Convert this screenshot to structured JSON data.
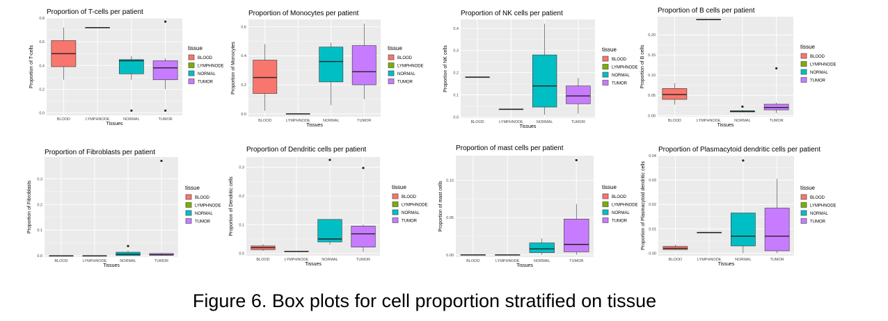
{
  "caption": "Figure 6. Box plots for cell proportion stratified on tissue",
  "colors": {
    "BLOOD": "#F8766D",
    "LYMPHNODE": "#7CAE00",
    "NORMAL": "#00BFC4",
    "TUMOR": "#C77CFF",
    "panel_bg": "#EBEBEB",
    "grid": "#FFFFFF"
  },
  "chart_data": [
    {
      "type": "box",
      "title": "Proportion of T-cells per patient",
      "xlabel": "Tissues",
      "ylabel": "Proportion of T-cells",
      "categories": [
        "BLOOD",
        "LYMPHNODE",
        "NORMAL",
        "TUMOR"
      ],
      "ylim": [
        -0.02,
        0.8
      ],
      "yticks": [
        0.0,
        0.2,
        0.4,
        0.6,
        0.8
      ],
      "ytick_labels": [
        "0.0",
        "0.2",
        "0.4",
        "0.6",
        "0.8"
      ],
      "legend_title": "tissue",
      "legend_entries": [
        "BLOOD",
        "LYMPHNODE",
        "NORMAL",
        "TUMOR"
      ],
      "boxes": [
        {
          "category": "BLOOD",
          "min": 0.28,
          "q1": 0.39,
          "median": 0.5,
          "q3": 0.61,
          "max": 0.72,
          "outliers": []
        },
        {
          "category": "LYMPHNODE",
          "min": 0.72,
          "q1": 0.72,
          "median": 0.72,
          "q3": 0.72,
          "max": 0.72,
          "outliers": []
        },
        {
          "category": "NORMAL",
          "min": 0.28,
          "q1": 0.33,
          "median": 0.44,
          "q3": 0.45,
          "max": 0.48,
          "outliers": [
            0.02
          ]
        },
        {
          "category": "TUMOR",
          "min": 0.2,
          "q1": 0.28,
          "median": 0.38,
          "q3": 0.44,
          "max": 0.46,
          "outliers": [
            0.77,
            0.02
          ]
        }
      ]
    },
    {
      "type": "box",
      "title": "Proportion of Monocytes per patient",
      "xlabel": "Tissues",
      "ylabel": "Proportion of Monocytes",
      "categories": [
        "BLOOD",
        "LYMPHNODE",
        "NORMAL",
        "TUMOR"
      ],
      "ylim": [
        -0.02,
        0.65
      ],
      "yticks": [
        0.0,
        0.2,
        0.4,
        0.6
      ],
      "ytick_labels": [
        "0.0",
        "0.2",
        "0.4",
        "0.6"
      ],
      "legend_title": "tissue",
      "legend_entries": [
        "BLOOD",
        "LYMPHNODE",
        "NORMAL",
        "TUMOR"
      ],
      "boxes": [
        {
          "category": "BLOOD",
          "min": 0.02,
          "q1": 0.14,
          "median": 0.25,
          "q3": 0.37,
          "max": 0.48,
          "outliers": []
        },
        {
          "category": "LYMPHNODE",
          "min": 0.0,
          "q1": 0.0,
          "median": 0.0,
          "q3": 0.0,
          "max": 0.0,
          "outliers": []
        },
        {
          "category": "NORMAL",
          "min": 0.06,
          "q1": 0.22,
          "median": 0.36,
          "q3": 0.46,
          "max": 0.49,
          "outliers": []
        },
        {
          "category": "TUMOR",
          "min": 0.1,
          "q1": 0.2,
          "median": 0.29,
          "q3": 0.47,
          "max": 0.62,
          "outliers": []
        }
      ]
    },
    {
      "type": "box",
      "title": "Proportion of NK cells per patient",
      "xlabel": "Tissues",
      "ylabel": "Proportion of NK cells",
      "categories": [
        "BLOOD",
        "LYMPHNODE",
        "NORMAL",
        "TUMOR"
      ],
      "ylim": [
        -0.005,
        0.44
      ],
      "yticks": [
        0.0,
        0.1,
        0.2,
        0.3,
        0.4
      ],
      "ytick_labels": [
        "0.0",
        "0.1",
        "0.2",
        "0.3",
        "0.4"
      ],
      "legend_title": "tissue",
      "legend_entries": [
        "BLOOD",
        "LYMPHNODE",
        "NORMAL",
        "TUMOR"
      ],
      "boxes": [
        {
          "category": "BLOOD",
          "min": 0.18,
          "q1": 0.18,
          "median": 0.18,
          "q3": 0.18,
          "max": 0.18,
          "outliers": []
        },
        {
          "category": "LYMPHNODE",
          "min": 0.035,
          "q1": 0.035,
          "median": 0.035,
          "q3": 0.035,
          "max": 0.035,
          "outliers": []
        },
        {
          "category": "NORMAL",
          "min": 0.01,
          "q1": 0.045,
          "median": 0.14,
          "q3": 0.28,
          "max": 0.42,
          "outliers": []
        },
        {
          "category": "TUMOR",
          "min": 0.015,
          "q1": 0.06,
          "median": 0.095,
          "q3": 0.14,
          "max": 0.175,
          "outliers": []
        }
      ]
    },
    {
      "type": "box",
      "title": "Proportion of B cells per patient",
      "xlabel": "Tissues",
      "ylabel": "Proportion of B cells",
      "categories": [
        "BLOOD",
        "LYMPHNODE",
        "NORMAL",
        "TUMOR"
      ],
      "ylim": [
        -0.003,
        0.245
      ],
      "yticks": [
        0.0,
        0.05,
        0.1,
        0.15,
        0.2
      ],
      "ytick_labels": [
        "0.00",
        "0.05",
        "0.10",
        "0.15",
        "0.20"
      ],
      "legend_title": "tissue",
      "legend_entries": [
        "BLOOD",
        "LYMPHNODE",
        "NORMAL",
        "TUMOR"
      ],
      "boxes": [
        {
          "category": "BLOOD",
          "min": 0.027,
          "q1": 0.04,
          "median": 0.052,
          "q3": 0.067,
          "max": 0.08,
          "outliers": []
        },
        {
          "category": "LYMPHNODE",
          "min": 0.238,
          "q1": 0.238,
          "median": 0.238,
          "q3": 0.238,
          "max": 0.238,
          "outliers": []
        },
        {
          "category": "NORMAL",
          "min": 0.008,
          "q1": 0.009,
          "median": 0.01,
          "q3": 0.012,
          "max": 0.014,
          "outliers": [
            0.022
          ]
        },
        {
          "category": "TUMOR",
          "min": 0.006,
          "q1": 0.014,
          "median": 0.02,
          "q3": 0.028,
          "max": 0.032,
          "outliers": [
            0.117
          ]
        }
      ]
    },
    {
      "type": "box",
      "title": "Proportion of Fibroblasts per patient",
      "xlabel": "Tissues",
      "ylabel": "Proportion of Fibroblasts",
      "categories": [
        "BLOOD",
        "LYMPHNODE",
        "NORMAL",
        "TUMOR"
      ],
      "ylim": [
        -0.005,
        0.385
      ],
      "yticks": [
        0.0,
        0.1,
        0.2,
        0.3
      ],
      "ytick_labels": [
        "0.0",
        "0.1",
        "0.2",
        "0.3"
      ],
      "legend_title": "tissue",
      "legend_entries": [
        "BLOOD",
        "LYMPHNODE",
        "NORMAL",
        "TUMOR"
      ],
      "boxes": [
        {
          "category": "BLOOD",
          "min": 0.0,
          "q1": 0.0,
          "median": 0.0,
          "q3": 0.0,
          "max": 0.0,
          "outliers": []
        },
        {
          "category": "LYMPHNODE",
          "min": 0.0,
          "q1": 0.0,
          "median": 0.0,
          "q3": 0.0,
          "max": 0.0,
          "outliers": []
        },
        {
          "category": "NORMAL",
          "min": 0.0,
          "q1": 0.001,
          "median": 0.006,
          "q3": 0.014,
          "max": 0.02,
          "outliers": [
            0.038
          ]
        },
        {
          "category": "TUMOR",
          "min": 0.0,
          "q1": 0.002,
          "median": 0.004,
          "q3": 0.009,
          "max": 0.012,
          "outliers": [
            0.37
          ]
        }
      ]
    },
    {
      "type": "box",
      "title": "Proportion of Dendritic cells per patient",
      "xlabel": "Tissues",
      "ylabel": "Proportion of Dendritic cells",
      "categories": [
        "BLOOD",
        "LYMPHNODE",
        "NORMAL",
        "TUMOR"
      ],
      "ylim": [
        -0.008,
        0.335
      ],
      "yticks": [
        0.0,
        0.1,
        0.2,
        0.3
      ],
      "ytick_labels": [
        "0.0",
        "0.1",
        "0.2",
        "0.3"
      ],
      "legend_title": "tissue",
      "legend_entries": [
        "BLOOD",
        "LYMPHNODE",
        "NORMAL",
        "TUMOR"
      ],
      "boxes": [
        {
          "category": "BLOOD",
          "min": 0.008,
          "q1": 0.013,
          "median": 0.02,
          "q3": 0.026,
          "max": 0.032,
          "outliers": []
        },
        {
          "category": "LYMPHNODE",
          "min": 0.007,
          "q1": 0.007,
          "median": 0.007,
          "q3": 0.007,
          "max": 0.007,
          "outliers": []
        },
        {
          "category": "NORMAL",
          "min": 0.03,
          "q1": 0.04,
          "median": 0.05,
          "q3": 0.118,
          "max": 0.118,
          "outliers": [
            0.325
          ]
        },
        {
          "category": "TUMOR",
          "min": 0.005,
          "q1": 0.022,
          "median": 0.068,
          "q3": 0.095,
          "max": 0.1,
          "outliers": [
            0.297
          ]
        }
      ]
    },
    {
      "type": "box",
      "title": "Proportion of mast cells per patient",
      "xlabel": "Tissues",
      "ylabel": "Proportion of mast cells",
      "categories": [
        "BLOOD",
        "LYMPHNODE",
        "NORMAL",
        "TUMOR"
      ],
      "ylim": [
        -0.003,
        0.133
      ],
      "yticks": [
        0.0,
        0.05,
        0.1
      ],
      "ytick_labels": [
        "0.00",
        "0.05",
        "0.10"
      ],
      "legend_title": "tissue",
      "legend_entries": [
        "BLOOD",
        "LYMPHNODE",
        "NORMAL",
        "TUMOR"
      ],
      "boxes": [
        {
          "category": "BLOOD",
          "min": 0.0,
          "q1": 0.0,
          "median": 0.0,
          "q3": 0.0,
          "max": 0.0,
          "outliers": []
        },
        {
          "category": "LYMPHNODE",
          "min": 0.0,
          "q1": 0.0,
          "median": 0.0,
          "q3": 0.0,
          "max": 0.0,
          "outliers": []
        },
        {
          "category": "NORMAL",
          "min": 0.0,
          "q1": 0.003,
          "median": 0.008,
          "q3": 0.016,
          "max": 0.022,
          "outliers": []
        },
        {
          "category": "TUMOR",
          "min": 0.0,
          "q1": 0.004,
          "median": 0.014,
          "q3": 0.048,
          "max": 0.068,
          "outliers": [
            0.127
          ]
        }
      ]
    },
    {
      "type": "box",
      "title": "Proportion of Plasmacytoid dendritic cells per patient",
      "xlabel": "Tissues",
      "ylabel": "Proportion of Plasmacytoid dendritic cells",
      "categories": [
        "BLOOD",
        "LYMPHNODE",
        "NORMAL",
        "TUMOR"
      ],
      "ylim": [
        -0.001,
        0.04
      ],
      "yticks": [
        0.0,
        0.01,
        0.02,
        0.03,
        0.04
      ],
      "ytick_labels": [
        "0.00",
        "0.01",
        "0.02",
        "0.03",
        "0.04"
      ],
      "legend_title": "tissue",
      "legend_entries": [
        "BLOOD",
        "LYMPHNODE",
        "NORMAL",
        "TUMOR"
      ],
      "boxes": [
        {
          "category": "BLOOD",
          "min": 0.0012,
          "q1": 0.0015,
          "median": 0.002,
          "q3": 0.0028,
          "max": 0.0035,
          "outliers": []
        },
        {
          "category": "LYMPHNODE",
          "min": 0.0085,
          "q1": 0.0085,
          "median": 0.0085,
          "q3": 0.0085,
          "max": 0.0085,
          "outliers": []
        },
        {
          "category": "NORMAL",
          "min": 0.0,
          "q1": 0.003,
          "median": 0.007,
          "q3": 0.0165,
          "max": 0.0165,
          "outliers": [
            0.038
          ]
        },
        {
          "category": "TUMOR",
          "min": 0.0,
          "q1": 0.001,
          "median": 0.007,
          "q3": 0.0185,
          "max": 0.0305,
          "outliers": []
        }
      ]
    }
  ]
}
